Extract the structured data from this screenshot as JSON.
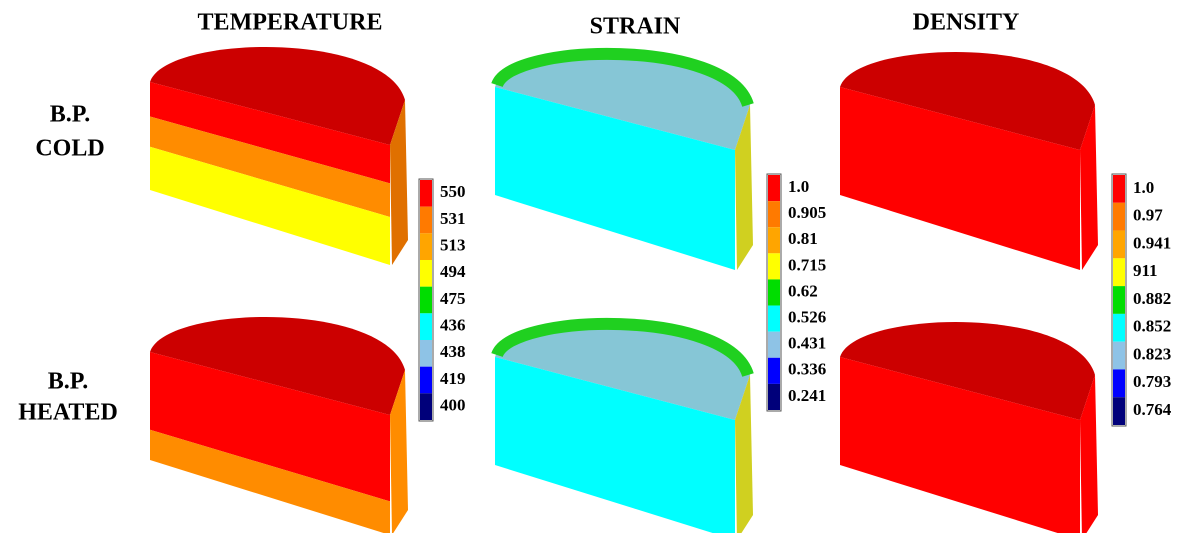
{
  "columns": [
    "TEMPERATURE",
    "STRAIN",
    "DENSITY"
  ],
  "rows": [
    [
      "B.P.",
      "COLD"
    ],
    [
      "B.P.",
      "HEATED"
    ]
  ],
  "legends": [
    {
      "labels": [
        "550",
        "531",
        "513",
        "494",
        "475",
        "436",
        "438",
        "419",
        "400"
      ]
    },
    {
      "labels": [
        "1.0",
        "0.905",
        "0.81",
        "0.715",
        "0.62",
        "0.526",
        "0.431",
        "0.336",
        "0.241"
      ]
    },
    {
      "labels": [
        "1.0",
        "0.97",
        "0.941",
        "911",
        "0.882",
        "0.852",
        "0.823",
        "0.793",
        "0.764"
      ]
    }
  ]
}
